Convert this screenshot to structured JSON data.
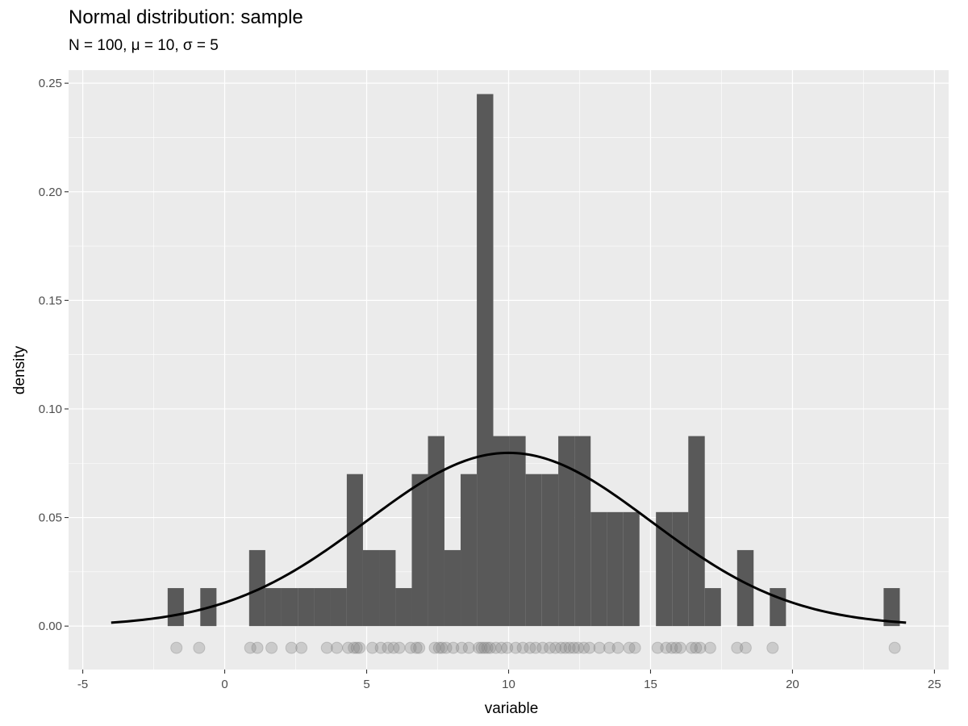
{
  "chart_data": {
    "type": "bar",
    "title": "Normal distribution: sample",
    "subtitle": "N = 100, μ = 10, σ = 5",
    "xlabel": "variable",
    "ylabel": "density",
    "xlim": [
      -5.5,
      25.5
    ],
    "ylim": [
      -0.02,
      0.256
    ],
    "xticks": [
      -5,
      0,
      5,
      10,
      15,
      20,
      25
    ],
    "yticks": [
      0.0,
      0.05,
      0.1,
      0.15,
      0.2,
      0.25
    ],
    "ytick_labels": [
      "0.00",
      "0.05",
      "0.10",
      "0.15",
      "0.20",
      "0.25"
    ],
    "grid": true,
    "histogram": {
      "bin_width": 0.573,
      "bins": [
        {
          "x0": -2.01,
          "x1": -1.44,
          "density": 0.0175
        },
        {
          "x0": -0.86,
          "x1": -0.29,
          "density": 0.0175
        },
        {
          "x0": 0.86,
          "x1": 1.43,
          "density": 0.035
        },
        {
          "x0": 1.43,
          "x1": 2.0,
          "density": 0.0175
        },
        {
          "x0": 2.0,
          "x1": 2.58,
          "density": 0.0175
        },
        {
          "x0": 2.58,
          "x1": 3.15,
          "density": 0.0175
        },
        {
          "x0": 3.15,
          "x1": 3.72,
          "density": 0.0175
        },
        {
          "x0": 3.72,
          "x1": 4.3,
          "density": 0.0175
        },
        {
          "x0": 4.3,
          "x1": 4.87,
          "density": 0.07
        },
        {
          "x0": 4.87,
          "x1": 5.44,
          "density": 0.035
        },
        {
          "x0": 5.44,
          "x1": 6.02,
          "density": 0.035
        },
        {
          "x0": 6.02,
          "x1": 6.59,
          "density": 0.0175
        },
        {
          "x0": 6.59,
          "x1": 7.16,
          "density": 0.07
        },
        {
          "x0": 7.16,
          "x1": 7.74,
          "density": 0.0875
        },
        {
          "x0": 7.74,
          "x1": 8.31,
          "density": 0.035
        },
        {
          "x0": 8.31,
          "x1": 8.88,
          "density": 0.07
        },
        {
          "x0": 8.88,
          "x1": 9.46,
          "density": 0.245
        },
        {
          "x0": 9.46,
          "x1": 10.03,
          "density": 0.0875
        },
        {
          "x0": 10.03,
          "x1": 10.6,
          "density": 0.0875
        },
        {
          "x0": 10.6,
          "x1": 11.17,
          "density": 0.07
        },
        {
          "x0": 11.17,
          "x1": 11.75,
          "density": 0.07
        },
        {
          "x0": 11.75,
          "x1": 12.32,
          "density": 0.0875
        },
        {
          "x0": 12.32,
          "x1": 12.89,
          "density": 0.0875
        },
        {
          "x0": 12.89,
          "x1": 13.47,
          "density": 0.0525
        },
        {
          "x0": 13.47,
          "x1": 14.04,
          "density": 0.0525
        },
        {
          "x0": 14.04,
          "x1": 14.61,
          "density": 0.0525
        },
        {
          "x0": 15.19,
          "x1": 15.76,
          "density": 0.0525
        },
        {
          "x0": 15.76,
          "x1": 16.33,
          "density": 0.0525
        },
        {
          "x0": 16.33,
          "x1": 16.91,
          "density": 0.0875
        },
        {
          "x0": 16.91,
          "x1": 17.48,
          "density": 0.0175
        },
        {
          "x0": 18.05,
          "x1": 18.63,
          "density": 0.035
        },
        {
          "x0": 19.2,
          "x1": 19.77,
          "density": 0.0175
        },
        {
          "x0": 23.21,
          "x1": 23.78,
          "density": 0.0175
        }
      ]
    },
    "density_curve": {
      "distribution": "normal",
      "mean": 10,
      "sd": 5,
      "x_range": [
        -4,
        24
      ],
      "color": "#000000"
    },
    "rug_points": {
      "y": -0.01,
      "x": [
        -1.7,
        -0.9,
        0.9,
        1.15,
        1.65,
        2.35,
        2.7,
        3.6,
        3.95,
        4.35,
        4.55,
        4.65,
        4.75,
        5.2,
        5.5,
        5.75,
        5.95,
        6.15,
        6.55,
        6.75,
        6.85,
        7.4,
        7.55,
        7.65,
        7.8,
        8.05,
        8.35,
        8.6,
        8.95,
        9.05,
        9.15,
        9.25,
        9.35,
        9.55,
        9.75,
        9.95,
        10.25,
        10.5,
        10.75,
        10.95,
        11.2,
        11.45,
        11.65,
        11.85,
        12.0,
        12.15,
        12.3,
        12.45,
        12.65,
        12.85,
        13.2,
        13.55,
        13.85,
        14.25,
        14.45,
        15.25,
        15.55,
        15.75,
        15.9,
        16.05,
        16.45,
        16.6,
        16.75,
        17.1,
        18.05,
        18.35,
        19.3,
        23.6
      ],
      "color": "#808080"
    },
    "colors": {
      "panel_background": "#ebebeb",
      "grid_major": "#ffffff",
      "bar_fill": "#595959",
      "curve": "#000000"
    }
  }
}
